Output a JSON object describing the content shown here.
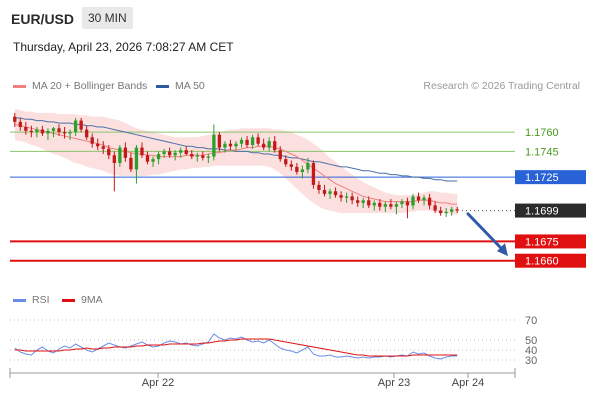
{
  "header": {
    "pair": "EUR/USD",
    "timeframe": "30 MIN",
    "datetime": "Thursday, April 23, 2026 7:08:27 AM CET"
  },
  "legend": {
    "ma20": "MA 20 + Bollinger Bands",
    "ma50": "MA 50",
    "credit": "Research © 2026 Trading Central",
    "rsi": "RSI",
    "ma9": "9MA"
  },
  "colors": {
    "up": "#2ca02c",
    "down": "#c41919",
    "ma20": "#f08080",
    "ma50": "#4a6fa5",
    "band": "#fbd4d4",
    "resistance": "#8cc56b",
    "pivot": "#2962d6",
    "support": "#e01010",
    "current": "#2b2b2b",
    "rsi": "#6a8ee8",
    "rsi_ma": "#e01010"
  },
  "chart_data": [
    {
      "type": "candlestick",
      "title": "EUR/USD",
      "ylim": [
        1.1645,
        1.1785
      ],
      "levels": [
        {
          "label": "1.1760",
          "value": 1.176,
          "kind": "resistance"
        },
        {
          "label": "1.1745",
          "value": 1.1745,
          "kind": "resistance"
        },
        {
          "label": "1.1725",
          "value": 1.1725,
          "kind": "pivot"
        },
        {
          "label": "1.1699",
          "value": 1.1699,
          "kind": "current"
        },
        {
          "label": "1.1675",
          "value": 1.1675,
          "kind": "support"
        },
        {
          "label": "1.1660",
          "value": 1.166,
          "kind": "support"
        }
      ],
      "x_ticks": [
        "Apr 22",
        "Apr 23",
        "Apr 24"
      ],
      "forecast_arrow": {
        "from": 1.1698,
        "to": 1.1662
      },
      "ohlc": [
        [
          1.1772,
          1.1775,
          1.1764,
          1.1768
        ],
        [
          1.1768,
          1.1771,
          1.1761,
          1.1764
        ],
        [
          1.1764,
          1.1768,
          1.1758,
          1.1761
        ],
        [
          1.1761,
          1.1765,
          1.1756,
          1.176
        ],
        [
          1.176,
          1.1764,
          1.1756,
          1.1762
        ],
        [
          1.1762,
          1.1765,
          1.1757,
          1.1759
        ],
        [
          1.1759,
          1.1763,
          1.1754,
          1.1761
        ],
        [
          1.1761,
          1.1764,
          1.1756,
          1.1763
        ],
        [
          1.1763,
          1.1766,
          1.1757,
          1.176
        ],
        [
          1.176,
          1.1764,
          1.1755,
          1.1759
        ],
        [
          1.1759,
          1.1762,
          1.1754,
          1.176
        ],
        [
          1.176,
          1.1771,
          1.1757,
          1.1769
        ],
        [
          1.1769,
          1.1771,
          1.176,
          1.1762
        ],
        [
          1.1762,
          1.1765,
          1.1754,
          1.1756
        ],
        [
          1.1756,
          1.1759,
          1.1748,
          1.1751
        ],
        [
          1.1751,
          1.1755,
          1.1746,
          1.1749
        ],
        [
          1.1749,
          1.1753,
          1.1743,
          1.1747
        ],
        [
          1.1747,
          1.175,
          1.1739,
          1.1742
        ],
        [
          1.1742,
          1.1745,
          1.1714,
          1.1736
        ],
        [
          1.1736,
          1.175,
          1.1733,
          1.1748
        ],
        [
          1.1748,
          1.1752,
          1.1737,
          1.174
        ],
        [
          1.174,
          1.1744,
          1.1729,
          1.1731
        ],
        [
          1.1731,
          1.175,
          1.172,
          1.1748
        ],
        [
          1.1748,
          1.1752,
          1.174,
          1.1742
        ],
        [
          1.1742,
          1.1745,
          1.1735,
          1.1737
        ],
        [
          1.1737,
          1.1741,
          1.1733,
          1.1739
        ],
        [
          1.1739,
          1.1745,
          1.1735,
          1.1743
        ],
        [
          1.1743,
          1.1747,
          1.174,
          1.1745
        ],
        [
          1.1745,
          1.1748,
          1.174,
          1.1742
        ],
        [
          1.1742,
          1.1746,
          1.1738,
          1.1744
        ],
        [
          1.1744,
          1.1748,
          1.174,
          1.1746
        ],
        [
          1.1746,
          1.1749,
          1.1742,
          1.1743
        ],
        [
          1.1743,
          1.1746,
          1.1739,
          1.1741
        ],
        [
          1.1741,
          1.1744,
          1.1737,
          1.1742
        ],
        [
          1.1742,
          1.1745,
          1.1738,
          1.174
        ],
        [
          1.174,
          1.1743,
          1.1736,
          1.1741
        ],
        [
          1.1741,
          1.1766,
          1.1738,
          1.1758
        ],
        [
          1.1758,
          1.176,
          1.1745,
          1.1748
        ],
        [
          1.1748,
          1.1753,
          1.1744,
          1.1751
        ],
        [
          1.1751,
          1.1754,
          1.1746,
          1.1749
        ],
        [
          1.1749,
          1.1753,
          1.1746,
          1.1751
        ],
        [
          1.1751,
          1.1756,
          1.1748,
          1.1754
        ],
        [
          1.1754,
          1.1757,
          1.1748,
          1.175
        ],
        [
          1.175,
          1.1758,
          1.1747,
          1.1756
        ],
        [
          1.1756,
          1.1759,
          1.1749,
          1.1751
        ],
        [
          1.1751,
          1.1755,
          1.1746,
          1.1748
        ],
        [
          1.1748,
          1.1756,
          1.1745,
          1.1753
        ],
        [
          1.1753,
          1.1757,
          1.1744,
          1.1746
        ],
        [
          1.1746,
          1.1749,
          1.1737,
          1.1739
        ],
        [
          1.1739,
          1.1742,
          1.1733,
          1.1735
        ],
        [
          1.1735,
          1.1738,
          1.173,
          1.1733
        ],
        [
          1.1733,
          1.1736,
          1.1727,
          1.1729
        ],
        [
          1.1729,
          1.1734,
          1.1724,
          1.1731
        ],
        [
          1.1731,
          1.174,
          1.1728,
          1.1736
        ],
        [
          1.1736,
          1.1738,
          1.1716,
          1.1719
        ],
        [
          1.1719,
          1.1722,
          1.1712,
          1.1715
        ],
        [
          1.1715,
          1.1719,
          1.171,
          1.1712
        ],
        [
          1.1712,
          1.1716,
          1.1708,
          1.1714
        ],
        [
          1.1714,
          1.1717,
          1.1709,
          1.1711
        ],
        [
          1.1711,
          1.1714,
          1.1706,
          1.1709
        ],
        [
          1.1709,
          1.1713,
          1.1705,
          1.171
        ],
        [
          1.171,
          1.1713,
          1.1704,
          1.1707
        ],
        [
          1.1707,
          1.171,
          1.1702,
          1.1705
        ],
        [
          1.1705,
          1.1709,
          1.1701,
          1.1707
        ],
        [
          1.1707,
          1.171,
          1.1701,
          1.1703
        ],
        [
          1.1703,
          1.1707,
          1.1699,
          1.1705
        ],
        [
          1.1705,
          1.1708,
          1.1699,
          1.1702
        ],
        [
          1.1702,
          1.1706,
          1.1698,
          1.1704
        ],
        [
          1.1704,
          1.1708,
          1.17,
          1.1702
        ],
        [
          1.1702,
          1.1706,
          1.1696,
          1.1704
        ],
        [
          1.1704,
          1.1708,
          1.1701,
          1.1706
        ],
        [
          1.1706,
          1.1709,
          1.1693,
          1.1703
        ],
        [
          1.1703,
          1.1712,
          1.17,
          1.171
        ],
        [
          1.171,
          1.1713,
          1.1705,
          1.1707
        ],
        [
          1.1707,
          1.1711,
          1.1703,
          1.1709
        ],
        [
          1.1709,
          1.1712,
          1.17,
          1.1703
        ],
        [
          1.1703,
          1.1706,
          1.1697,
          1.1699
        ],
        [
          1.1699,
          1.1702,
          1.1695,
          1.1697
        ],
        [
          1.1697,
          1.1701,
          1.1694,
          1.1698
        ],
        [
          1.1698,
          1.1702,
          1.1695,
          1.17
        ],
        [
          1.17,
          1.1702,
          1.1697,
          1.1699
        ]
      ],
      "ma20": [
        1.1766,
        1.1765,
        1.1764,
        1.1763,
        1.1762,
        1.1761,
        1.176,
        1.1759,
        1.1758,
        1.1757,
        1.1756,
        1.1755,
        1.1754,
        1.1753,
        1.1752,
        1.1751,
        1.175,
        1.1748,
        1.1747,
        1.1746,
        1.1745,
        1.1744,
        1.1743,
        1.1743,
        1.1742,
        1.1742,
        1.1741,
        1.1741,
        1.1741,
        1.1741,
        1.1741,
        1.1742,
        1.1742,
        1.1742,
        1.1742,
        1.1743,
        1.1744,
        1.1744,
        1.1745,
        1.1746,
        1.1746,
        1.1747,
        1.1748,
        1.1748,
        1.1749,
        1.1749,
        1.1749,
        1.1748,
        1.1747,
        1.1745,
        1.1743,
        1.1741,
        1.1738,
        1.1735,
        1.1732,
        1.1729,
        1.1726,
        1.1723,
        1.172,
        1.1718,
        1.1716,
        1.1714,
        1.1712,
        1.171,
        1.1709,
        1.1708,
        1.1707,
        1.1706,
        1.1706,
        1.1706,
        1.1706,
        1.1706,
        1.1706,
        1.1707,
        1.1707,
        1.1707,
        1.1706,
        1.1705,
        1.1705,
        1.1704,
        1.1704
      ],
      "bb_upper": [
        1.1778,
        1.1777,
        1.1776,
        1.1776,
        1.1775,
        1.1775,
        1.1775,
        1.1775,
        1.1774,
        1.1774,
        1.1774,
        1.1774,
        1.1773,
        1.1773,
        1.1772,
        1.1772,
        1.1772,
        1.1771,
        1.177,
        1.1769,
        1.1767,
        1.1765,
        1.1763,
        1.1762,
        1.1761,
        1.176,
        1.1759,
        1.1758,
        1.1757,
        1.1756,
        1.1756,
        1.1756,
        1.1756,
        1.1756,
        1.1757,
        1.1758,
        1.1759,
        1.176,
        1.1761,
        1.1762,
        1.1762,
        1.1763,
        1.1763,
        1.1763,
        1.1763,
        1.1763,
        1.1763,
        1.1762,
        1.1762,
        1.1761,
        1.176,
        1.1758,
        1.1756,
        1.1754,
        1.1751,
        1.1748,
        1.1744,
        1.174,
        1.1737,
        1.1733,
        1.173,
        1.1727,
        1.1724,
        1.1721,
        1.1719,
        1.1717,
        1.1715,
        1.1713,
        1.1712,
        1.1711,
        1.1711,
        1.1711,
        1.1711,
        1.1712,
        1.1713,
        1.1714,
        1.1714,
        1.1713,
        1.1713,
        1.1712,
        1.1712
      ],
      "bb_lower": [
        1.1754,
        1.1753,
        1.1752,
        1.175,
        1.1749,
        1.1747,
        1.1745,
        1.1743,
        1.1742,
        1.174,
        1.1738,
        1.1736,
        1.1735,
        1.1733,
        1.1732,
        1.1731,
        1.173,
        1.1728,
        1.1727,
        1.1726,
        1.1726,
        1.1726,
        1.1726,
        1.1726,
        1.1726,
        1.1727,
        1.1727,
        1.1728,
        1.1729,
        1.173,
        1.1731,
        1.1731,
        1.1732,
        1.1732,
        1.1733,
        1.1733,
        1.1734,
        1.1734,
        1.1734,
        1.1734,
        1.1734,
        1.1734,
        1.1734,
        1.1734,
        1.1734,
        1.1734,
        1.1733,
        1.1731,
        1.1728,
        1.1724,
        1.172,
        1.1716,
        1.1712,
        1.1708,
        1.1705,
        1.1702,
        1.17,
        1.1699,
        1.1698,
        1.1697,
        1.1697,
        1.1697,
        1.1697,
        1.1697,
        1.1697,
        1.1697,
        1.1697,
        1.1697,
        1.1697,
        1.1697,
        1.1697,
        1.1698,
        1.1698,
        1.1699,
        1.1699,
        1.1699,
        1.1698,
        1.1697,
        1.1697,
        1.1696,
        1.1696
      ],
      "ma50": [
        1.1771,
        1.1771,
        1.177,
        1.177,
        1.1769,
        1.1769,
        1.1768,
        1.1768,
        1.1767,
        1.1767,
        1.1767,
        1.1766,
        1.1766,
        1.1765,
        1.1765,
        1.1764,
        1.1764,
        1.1763,
        1.1762,
        1.1761,
        1.176,
        1.1759,
        1.1758,
        1.1757,
        1.1756,
        1.1755,
        1.1754,
        1.1753,
        1.1752,
        1.1751,
        1.175,
        1.1749,
        1.1749,
        1.1748,
        1.1748,
        1.1747,
        1.1747,
        1.1747,
        1.1746,
        1.1746,
        1.1745,
        1.1745,
        1.1745,
        1.1744,
        1.1744,
        1.1743,
        1.1743,
        1.1742,
        1.1742,
        1.1741,
        1.174,
        1.174,
        1.1739,
        1.1738,
        1.1737,
        1.1737,
        1.1736,
        1.1735,
        1.1734,
        1.1733,
        1.1733,
        1.1732,
        1.1731,
        1.173,
        1.173,
        1.1729,
        1.1728,
        1.1728,
        1.1727,
        1.1727,
        1.1726,
        1.1726,
        1.1725,
        1.1725,
        1.1724,
        1.1724,
        1.1723,
        1.1723,
        1.1722,
        1.1722,
        1.1722
      ]
    },
    {
      "type": "line",
      "title": "RSI",
      "ylim": [
        20,
        80
      ],
      "y_ticks": [
        70,
        50,
        40,
        30
      ],
      "series": [
        {
          "name": "RSI",
          "values": [
            42,
            38,
            36,
            35,
            40,
            43,
            39,
            37,
            41,
            44,
            42,
            46,
            43,
            40,
            38,
            41,
            44,
            47,
            45,
            43,
            42,
            44,
            46,
            48,
            45,
            43,
            44,
            47,
            49,
            48,
            46,
            47,
            45,
            44,
            46,
            48,
            56,
            52,
            50,
            52,
            51,
            53,
            50,
            48,
            49,
            47,
            50,
            46,
            42,
            40,
            39,
            37,
            40,
            43,
            36,
            34,
            34,
            35,
            33,
            33,
            34,
            33,
            32,
            33,
            32,
            33,
            33,
            34,
            33,
            34,
            35,
            34,
            38,
            36,
            37,
            34,
            32,
            31,
            33,
            34,
            34
          ]
        },
        {
          "name": "9MA",
          "values": [
            40,
            40,
            39,
            39,
            39,
            39,
            39,
            39,
            39,
            40,
            40,
            41,
            41,
            42,
            41,
            41,
            42,
            42,
            43,
            43,
            43,
            43,
            44,
            44,
            45,
            45,
            45,
            45,
            46,
            46,
            46,
            46,
            46,
            46,
            47,
            47,
            48,
            49,
            49,
            50,
            50,
            51,
            51,
            51,
            51,
            51,
            51,
            50,
            49,
            48,
            47,
            46,
            45,
            44,
            43,
            42,
            41,
            40,
            39,
            38,
            37,
            36,
            35,
            35,
            34,
            34,
            34,
            34,
            34,
            34,
            34,
            34,
            35,
            35,
            35,
            35,
            35,
            35,
            35,
            35,
            35
          ]
        }
      ]
    }
  ]
}
